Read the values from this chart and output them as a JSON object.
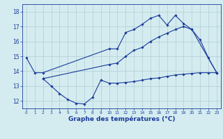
{
  "title": "Graphe des températures (°C)",
  "xlim": [
    -0.5,
    23.5
  ],
  "ylim": [
    11.5,
    18.5
  ],
  "xticks": [
    0,
    1,
    2,
    3,
    4,
    5,
    6,
    7,
    8,
    9,
    10,
    11,
    12,
    13,
    14,
    15,
    16,
    17,
    18,
    19,
    20,
    21,
    22,
    23
  ],
  "yticks": [
    12,
    13,
    14,
    15,
    16,
    17,
    18
  ],
  "bg_color": "#d4ecf0",
  "grid_color": "#b0cdd4",
  "line_color": "#1a3a9a",
  "series": [
    {
      "x": [
        0,
        1,
        2,
        10,
        11,
        12,
        13,
        14,
        15,
        16,
        17,
        18,
        19,
        20,
        21,
        22,
        23
      ],
      "y": [
        14.9,
        13.9,
        13.9,
        15.5,
        15.5,
        16.6,
        16.8,
        17.15,
        17.55,
        17.75,
        17.1,
        17.75,
        17.2,
        16.8,
        16.1,
        14.9,
        13.9
      ]
    },
    {
      "x": [
        2,
        10,
        11,
        12,
        13,
        14,
        15,
        16,
        17,
        18,
        19,
        20,
        23
      ],
      "y": [
        13.5,
        14.45,
        14.55,
        15.0,
        15.4,
        15.6,
        16.0,
        16.3,
        16.55,
        16.8,
        17.0,
        16.8,
        13.9
      ]
    },
    {
      "x": [
        2,
        3,
        4,
        5,
        6,
        7,
        8,
        9,
        10,
        11,
        12,
        13,
        14,
        15,
        16,
        17,
        18,
        19,
        20,
        21,
        22,
        23
      ],
      "y": [
        13.5,
        13.0,
        12.5,
        12.1,
        11.85,
        11.8,
        12.25,
        13.4,
        13.2,
        13.2,
        13.25,
        13.3,
        13.4,
        13.5,
        13.55,
        13.65,
        13.75,
        13.8,
        13.85,
        13.9,
        13.9,
        13.9
      ]
    }
  ],
  "xtick_fontsize": 4.2,
  "ytick_fontsize": 5.5,
  "xlabel_fontsize": 6.5
}
